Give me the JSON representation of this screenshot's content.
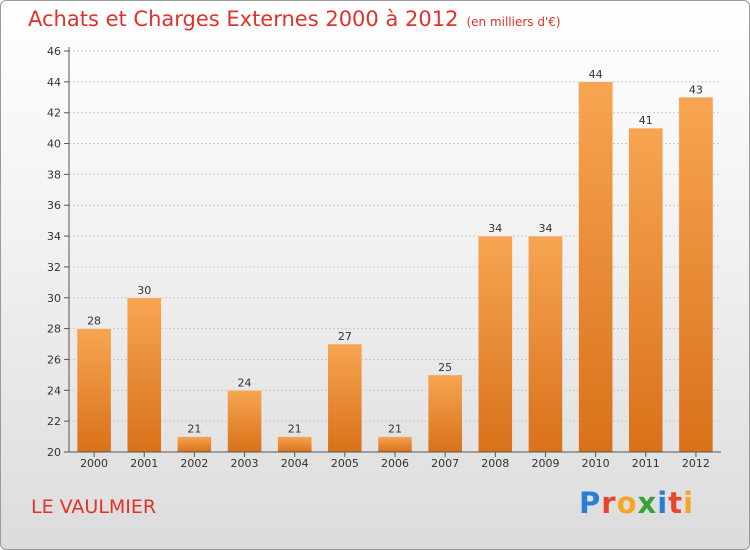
{
  "chart_data": {
    "type": "bar",
    "title": "Achats et Charges Externes 2000 à 2012",
    "unit_note": "(en milliers d'€)",
    "categories": [
      "2000",
      "2001",
      "2002",
      "2003",
      "2004",
      "2005",
      "2006",
      "2007",
      "2008",
      "2009",
      "2010",
      "2011",
      "2012"
    ],
    "values": [
      28,
      30,
      21,
      24,
      21,
      27,
      21,
      25,
      34,
      34,
      44,
      41,
      43
    ],
    "ylim": [
      20,
      46
    ],
    "yticks": [
      20,
      22,
      24,
      26,
      28,
      30,
      32,
      34,
      36,
      38,
      40,
      42,
      44,
      46
    ],
    "grid": true,
    "bar_color": "#f0902e"
  },
  "footer": {
    "commune": "LE VAULMIER",
    "logo": [
      "P",
      "r",
      "o",
      "x",
      "i",
      "t",
      "i"
    ]
  }
}
